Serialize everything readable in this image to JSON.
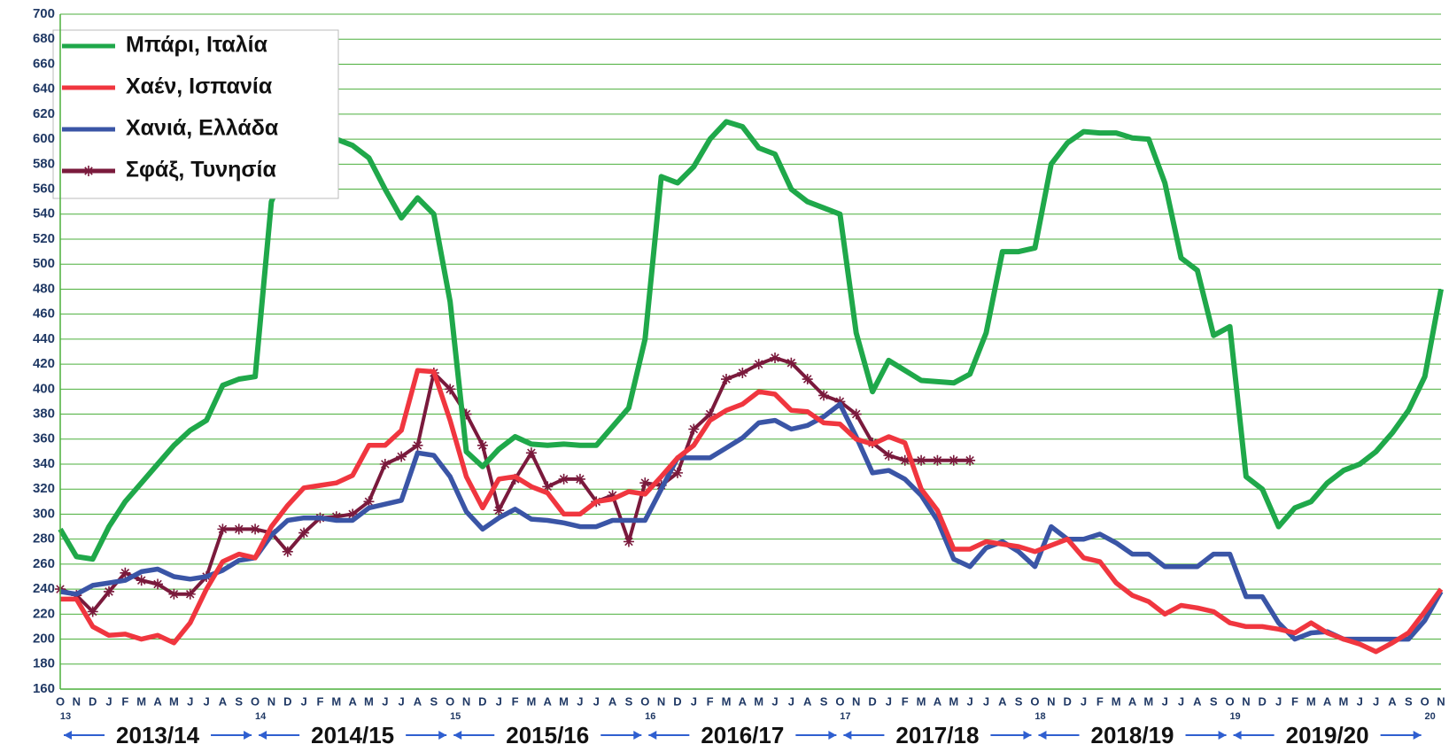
{
  "chart_data": {
    "type": "line",
    "categories": [
      "O",
      "N",
      "D",
      "J",
      "F",
      "M",
      "A",
      "M",
      "J",
      "J",
      "A",
      "S",
      "O",
      "N",
      "D",
      "J",
      "F",
      "M",
      "A",
      "M",
      "J",
      "J",
      "A",
      "S",
      "O",
      "N",
      "D",
      "J",
      "F",
      "M",
      "A",
      "M",
      "J",
      "J",
      "A",
      "S",
      "O",
      "N",
      "D",
      "J",
      "F",
      "M",
      "A",
      "M",
      "J",
      "J",
      "A",
      "S",
      "O",
      "N",
      "D",
      "J",
      "F",
      "M",
      "A",
      "M",
      "J",
      "J",
      "A",
      "S",
      "O",
      "N",
      "D",
      "J",
      "F",
      "M",
      "A",
      "M",
      "J",
      "J",
      "A",
      "S",
      "O",
      "N",
      "D",
      "J",
      "F",
      "M",
      "A",
      "M",
      "J",
      "J",
      "A",
      "S",
      "O",
      "N"
    ],
    "year_marks": [
      "13",
      "14",
      "15",
      "16",
      "17",
      "18",
      "19",
      "20"
    ],
    "seasons": [
      "2013/14",
      "2014/15",
      "2015/16",
      "2016/17",
      "2017/18",
      "2018/19",
      "2019/20"
    ],
    "ylim": [
      160,
      700
    ],
    "yticks": [
      160,
      180,
      200,
      220,
      240,
      260,
      280,
      300,
      320,
      340,
      360,
      380,
      400,
      420,
      440,
      460,
      480,
      500,
      520,
      540,
      560,
      580,
      600,
      620,
      640,
      660,
      680,
      700
    ],
    "grid": true,
    "grid_color": "#4caf3c",
    "legend": "upper-left",
    "series": [
      {
        "name": "Μπάρι, Ιταλία",
        "color": "#1fa84a",
        "values": [
          288,
          266,
          264,
          290,
          310,
          325,
          340,
          355,
          367,
          375,
          403,
          408,
          410,
          550,
          580,
          605,
          605,
          600,
          595,
          585,
          560,
          537,
          553,
          540,
          470,
          350,
          338,
          352,
          362,
          356,
          355,
          356,
          355,
          355,
          370,
          385,
          440,
          570,
          565,
          578,
          600,
          614,
          610,
          593,
          588,
          560,
          550,
          545,
          540,
          445,
          398,
          423,
          415,
          407,
          406,
          405,
          412,
          445,
          510,
          510,
          513,
          580,
          597,
          606,
          605,
          605,
          601,
          600,
          565,
          505,
          495,
          443,
          450,
          330,
          320,
          290,
          305,
          310,
          325,
          335,
          340,
          350,
          365,
          383,
          410,
          480
        ]
      },
      {
        "name": "Χαέν, Ισπανία",
        "color": "#f0363f",
        "values": [
          232,
          232,
          210,
          203,
          204,
          200,
          203,
          197,
          213,
          240,
          262,
          268,
          265,
          290,
          307,
          321,
          323,
          325,
          331,
          355,
          355,
          367,
          415,
          414,
          375,
          330,
          305,
          328,
          330,
          322,
          317,
          300,
          300,
          310,
          312,
          318,
          316,
          330,
          345,
          355,
          375,
          383,
          388,
          398,
          396,
          383,
          382,
          373,
          372,
          360,
          356,
          362,
          357,
          320,
          303,
          272,
          272,
          278,
          276,
          274,
          270,
          275,
          280,
          265,
          262,
          245,
          235,
          230,
          220,
          227,
          225,
          222,
          213,
          210,
          210,
          208,
          205,
          213,
          205,
          200,
          196,
          190,
          197,
          205,
          222,
          240
        ]
      },
      {
        "name": "Χανιά, Ελλάδα",
        "color": "#3a55a6",
        "values": [
          238,
          236,
          243,
          245,
          247,
          254,
          256,
          250,
          248,
          250,
          255,
          263,
          265,
          283,
          295,
          297,
          297,
          295,
          295,
          305,
          308,
          311,
          349,
          347,
          330,
          302,
          288,
          297,
          304,
          296,
          295,
          293,
          290,
          290,
          295,
          295,
          295,
          320,
          345,
          345,
          345,
          353,
          361,
          373,
          375,
          368,
          371,
          378,
          388,
          362,
          333,
          335,
          328,
          315,
          295,
          264,
          258,
          273,
          278,
          270,
          258,
          290,
          280,
          280,
          284,
          277,
          268,
          268,
          258,
          258,
          258,
          268,
          268,
          234,
          234,
          213,
          200,
          205,
          206,
          200,
          200,
          200,
          200,
          200,
          215,
          238
        ]
      },
      {
        "name": "Σφάξ, Τυνησία",
        "color": "#7a1a3c",
        "marker": "star",
        "values": [
          240,
          235,
          222,
          238,
          253,
          247,
          244,
          236,
          236,
          250,
          288,
          288,
          288,
          285,
          270,
          285,
          297,
          298,
          300,
          310,
          340,
          346,
          355,
          413,
          400,
          380,
          355,
          303,
          328,
          349,
          322,
          328,
          328,
          310,
          315,
          278,
          325,
          323,
          333,
          368,
          380,
          408,
          413,
          420,
          425,
          421,
          408,
          395,
          390,
          380,
          357,
          347,
          343,
          343,
          343,
          343,
          343,
          null,
          null,
          null,
          null,
          null,
          null,
          null,
          null,
          null,
          null,
          null,
          null,
          null,
          null,
          null,
          null,
          null,
          null,
          null,
          null,
          null,
          null,
          null,
          null,
          null,
          null,
          null,
          null,
          null
        ]
      }
    ]
  }
}
